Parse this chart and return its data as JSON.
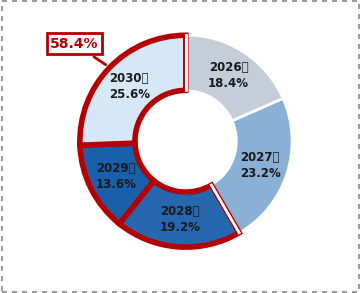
{
  "labels": [
    "2026년\n18.4%",
    "2027년\n23.2%",
    "2028년\n19.2%",
    "2029년\n13.6%",
    "2030년\n25.6%"
  ],
  "values": [
    18.4,
    23.2,
    19.2,
    13.6,
    25.6
  ],
  "colors": [
    "#c4cdd8",
    "#8ab0d5",
    "#2667b0",
    "#1a5faa",
    "#d6e8f7"
  ],
  "highlight_label": "58.4%",
  "highlight_color": "#b50000",
  "background": "#ffffff",
  "donut_inner_r": 0.48,
  "donut_outer_r": 1.0,
  "startangle": 90,
  "label_color": "#1a1a1a",
  "label_fontsize": 8.5,
  "highlighted_indices": [
    2,
    3,
    4
  ]
}
